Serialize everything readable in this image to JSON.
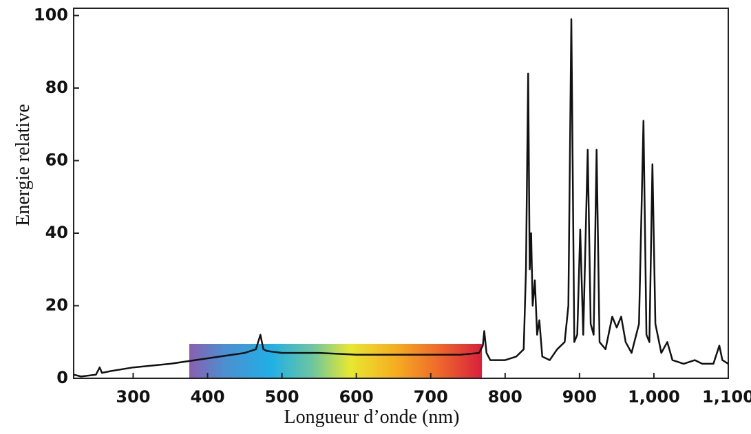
{
  "chart_data": {
    "type": "line",
    "x_label": "Longueur d’onde (nm)",
    "y_label": "Energie relative",
    "xlim": [
      220,
      1100
    ],
    "ylim": [
      0,
      102
    ],
    "xticks": [
      300,
      400,
      500,
      600,
      700,
      800,
      900,
      {
        "value": 1000,
        "label": "1,000"
      },
      {
        "value": 1100,
        "label": "1,100"
      }
    ],
    "yticks": [
      0,
      20,
      40,
      60,
      80,
      100
    ],
    "series": [
      {
        "color": "#111111",
        "x": [
          220,
          230,
          250,
          255,
          258,
          270,
          300,
          350,
          400,
          450,
          465,
          471,
          475,
          480,
          500,
          550,
          600,
          650,
          700,
          740,
          765,
          770,
          772,
          775,
          780,
          800,
          815,
          825,
          828,
          831,
          833,
          835,
          837,
          840,
          843,
          846,
          850,
          860,
          870,
          880,
          885,
          889,
          893,
          897,
          901,
          905,
          911,
          915,
          919,
          923,
          927,
          935,
          944,
          950,
          956,
          962,
          970,
          980,
          986,
          990,
          994,
          998,
          1002,
          1010,
          1018,
          1025,
          1040,
          1055,
          1065,
          1080,
          1088,
          1092,
          1100
        ],
        "values": [
          1,
          0.5,
          1,
          3,
          1.5,
          2,
          3,
          4,
          5.5,
          7,
          8,
          12,
          8,
          7.5,
          7,
          7,
          6.5,
          6.5,
          6.5,
          6.5,
          7,
          9,
          13,
          7,
          5,
          5,
          6,
          8,
          30,
          84,
          30,
          40,
          20,
          27,
          12,
          16,
          6,
          5,
          8,
          10,
          20,
          99,
          10,
          12,
          41,
          12,
          63,
          15,
          12,
          63,
          10,
          8,
          17,
          14,
          17,
          10,
          7,
          15,
          71,
          12,
          10,
          59,
          15,
          7,
          10,
          5,
          4,
          5,
          4,
          4,
          9,
          5,
          4
        ]
      }
    ]
  }
}
